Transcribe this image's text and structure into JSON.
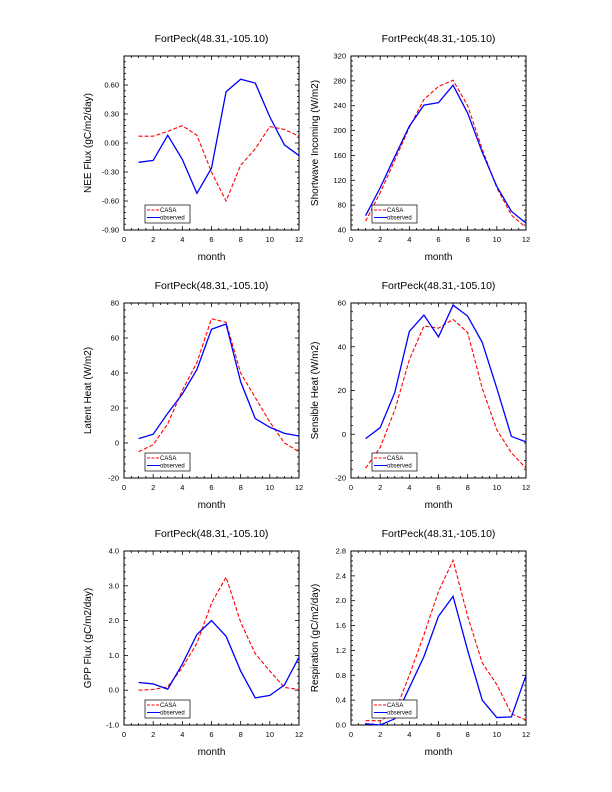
{
  "chart_data": [
    {
      "type": "line",
      "title": "FortPeck(48.31,-105.10)",
      "xlabel": "month",
      "ylabel": "NEE Flux (gC/m2/day)",
      "xlim": [
        0,
        12
      ],
      "ylim": [
        -0.9,
        0.9
      ],
      "xticks": [
        0,
        2,
        4,
        6,
        8,
        10,
        12
      ],
      "yticks": [
        -0.9,
        -0.6,
        -0.3,
        0.0,
        0.3,
        0.6
      ],
      "ytick_labels": [
        "-0.90",
        "-0.60",
        "-0.30",
        "0.00",
        "0.30",
        "0.60"
      ],
      "x": [
        1,
        2,
        3,
        4,
        5,
        6,
        7,
        8,
        9,
        10,
        11,
        12
      ],
      "series": [
        {
          "name": "CASA",
          "color": "#ff0000",
          "dash": true,
          "values": [
            0.07,
            0.07,
            0.12,
            0.18,
            0.08,
            -0.3,
            -0.6,
            -0.23,
            -0.06,
            0.17,
            0.14,
            0.07
          ]
        },
        {
          "name": "observed",
          "color": "#0000ff",
          "dash": false,
          "values": [
            -0.2,
            -0.18,
            0.08,
            -0.17,
            -0.52,
            -0.26,
            0.53,
            0.66,
            0.62,
            0.27,
            -0.02,
            -0.13
          ]
        }
      ],
      "legend": "bottom-left"
    },
    {
      "type": "line",
      "title": "FortPeck(48.31,-105.10)",
      "xlabel": "month",
      "ylabel": "Shortwave Incoming (W/m2)",
      "xlim": [
        0,
        12
      ],
      "ylim": [
        40,
        320
      ],
      "xticks": [
        0,
        2,
        4,
        6,
        8,
        10,
        12
      ],
      "yticks": [
        40,
        80,
        120,
        160,
        200,
        240,
        280,
        320
      ],
      "ytick_labels": [
        "40",
        "80",
        "120",
        "160",
        "200",
        "240",
        "280",
        "320"
      ],
      "x": [
        1,
        2,
        3,
        4,
        5,
        6,
        7,
        8,
        9,
        10,
        11,
        12
      ],
      "series": [
        {
          "name": "CASA",
          "color": "#ff0000",
          "dash": true,
          "values": [
            54,
            100,
            152,
            205,
            250,
            271,
            281,
            240,
            170,
            108,
            64,
            44
          ]
        },
        {
          "name": "observed",
          "color": "#0000ff",
          "dash": false,
          "values": [
            63,
            108,
            158,
            207,
            241,
            245,
            273,
            228,
            165,
            110,
            70,
            51
          ]
        }
      ],
      "legend": "bottom-left"
    },
    {
      "type": "line",
      "title": "FortPeck(48.31,-105.10)",
      "xlabel": "month",
      "ylabel": "Latent Heat (W/m2)",
      "xlim": [
        0,
        12
      ],
      "ylim": [
        -20,
        80
      ],
      "xticks": [
        0,
        2,
        4,
        6,
        8,
        10,
        12
      ],
      "yticks": [
        -20,
        0,
        20,
        40,
        60,
        80
      ],
      "ytick_labels": [
        "-20",
        "0",
        "20",
        "40",
        "60",
        "80"
      ],
      "x": [
        1,
        2,
        3,
        4,
        5,
        6,
        7,
        8,
        9,
        10,
        11,
        12
      ],
      "series": [
        {
          "name": "CASA",
          "color": "#ff0000",
          "dash": true,
          "values": [
            -5,
            -1,
            11,
            30,
            46,
            71,
            69,
            40,
            26,
            12,
            0,
            -5
          ]
        },
        {
          "name": "observed",
          "color": "#0000ff",
          "dash": false,
          "values": [
            2.5,
            5,
            17,
            28,
            42,
            65,
            68,
            35,
            14,
            9,
            5.5,
            4
          ]
        }
      ],
      "legend": "bottom-left"
    },
    {
      "type": "line",
      "title": "FortPeck(48.31,-105.10)",
      "xlabel": "month",
      "ylabel": "Sensible Heat (W/m2)",
      "xlim": [
        0,
        12
      ],
      "ylim": [
        -20,
        60
      ],
      "xticks": [
        0,
        2,
        4,
        6,
        8,
        10,
        12
      ],
      "yticks": [
        -20,
        0,
        20,
        40,
        60
      ],
      "ytick_labels": [
        "-20",
        "0",
        "20",
        "40",
        "60"
      ],
      "x": [
        1,
        2,
        3,
        4,
        5,
        6,
        7,
        8,
        9,
        10,
        11,
        12
      ],
      "series": [
        {
          "name": "CASA",
          "color": "#ff0000",
          "dash": true,
          "values": [
            -15.5,
            -6,
            11,
            34,
            49.5,
            48.5,
            52.5,
            46.5,
            21,
            2,
            -8.5,
            -15.5
          ]
        },
        {
          "name": "observed",
          "color": "#0000ff",
          "dash": false,
          "values": [
            -2,
            3,
            19,
            47,
            54.5,
            44.5,
            59,
            54,
            42,
            21,
            -1,
            -3.5
          ]
        }
      ],
      "legend": "bottom-left"
    },
    {
      "type": "line",
      "title": "FortPeck(48.31,-105.10)",
      "xlabel": "month",
      "ylabel": "GPP Flux (gC/m2/day)",
      "xlim": [
        0,
        12
      ],
      "ylim": [
        -1.0,
        4.0
      ],
      "xticks": [
        0,
        2,
        4,
        6,
        8,
        10,
        12
      ],
      "yticks": [
        -1.0,
        0.0,
        1.0,
        2.0,
        3.0,
        4.0
      ],
      "ytick_labels": [
        "-1.0",
        "0.0",
        "1.0",
        "2.0",
        "3.0",
        "4.0"
      ],
      "x": [
        1,
        2,
        3,
        4,
        5,
        6,
        7,
        8,
        9,
        10,
        11,
        12
      ],
      "series": [
        {
          "name": "CASA",
          "color": "#ff0000",
          "dash": true,
          "values": [
            0.0,
            0.02,
            0.1,
            0.65,
            1.35,
            2.5,
            3.25,
            1.95,
            1.05,
            0.55,
            0.08,
            0.02
          ]
        },
        {
          "name": "observed",
          "color": "#0000ff",
          "dash": false,
          "values": [
            0.22,
            0.18,
            0.03,
            0.75,
            1.6,
            2.0,
            1.55,
            0.55,
            -0.22,
            -0.15,
            0.15,
            0.95
          ]
        }
      ],
      "legend": "bottom-left"
    },
    {
      "type": "line",
      "title": "FortPeck(48.31,-105.10)",
      "xlabel": "month",
      "ylabel": "Respiration (gC/m2/day)",
      "xlim": [
        0,
        12
      ],
      "ylim": [
        0.0,
        2.8
      ],
      "xticks": [
        0,
        2,
        4,
        6,
        8,
        10,
        12
      ],
      "yticks": [
        0.0,
        0.4,
        0.8,
        1.2,
        1.6,
        2.0,
        2.4,
        2.8
      ],
      "ytick_labels": [
        "0.0",
        "0.4",
        "0.8",
        "1.2",
        "1.6",
        "2.0",
        "2.4",
        "2.8"
      ],
      "x": [
        1,
        2,
        3,
        4,
        5,
        6,
        7,
        8,
        9,
        10,
        11,
        12
      ],
      "series": [
        {
          "name": "CASA",
          "color": "#ff0000",
          "dash": true,
          "values": [
            0.07,
            0.07,
            0.2,
            0.8,
            1.45,
            2.15,
            2.65,
            1.75,
            1.0,
            0.65,
            0.18,
            0.08
          ]
        },
        {
          "name": "observed",
          "color": "#0000ff",
          "dash": false,
          "values": [
            0.02,
            0.0,
            0.1,
            0.6,
            1.1,
            1.75,
            2.07,
            1.2,
            0.4,
            0.12,
            0.13,
            0.8
          ]
        }
      ],
      "legend": "bottom-left"
    }
  ]
}
